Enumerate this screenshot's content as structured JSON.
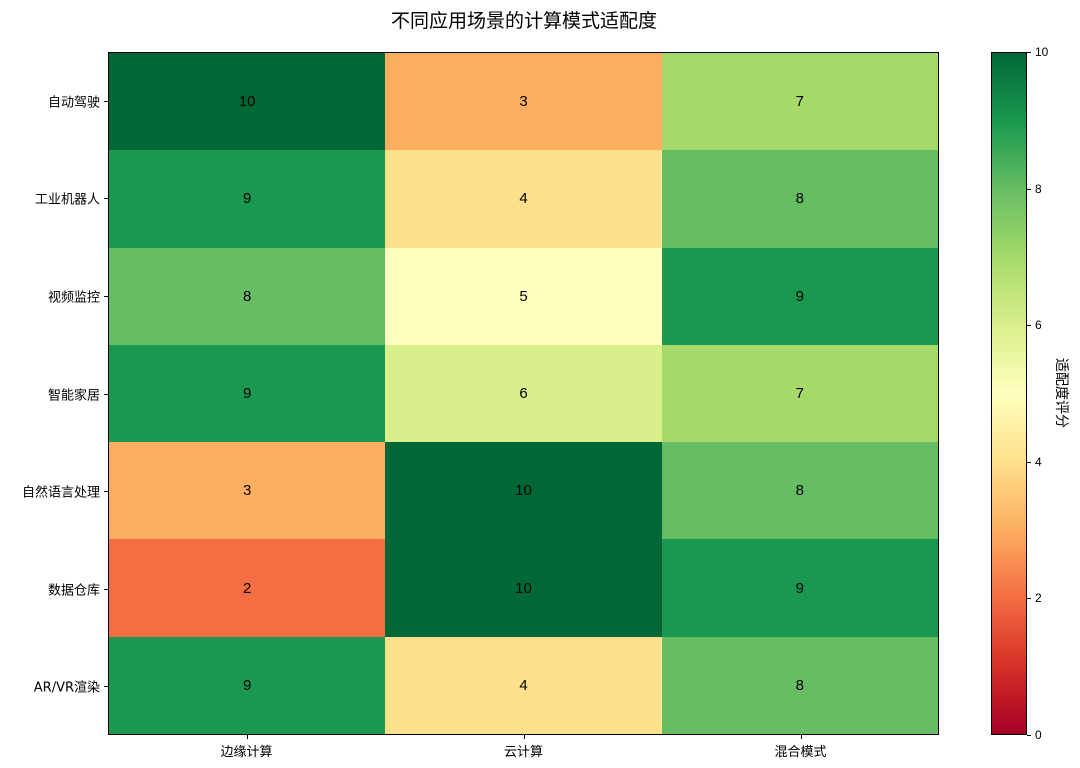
{
  "chart_data": {
    "type": "heatmap",
    "title": "不同应用场景的计算模式适配度",
    "xlabel": "",
    "ylabel": "",
    "x_categories": [
      "边缘计算",
      "云计算",
      "混合模式"
    ],
    "y_categories": [
      "自动驾驶",
      "工业机器人",
      "视频监控",
      "智能家居",
      "自然语言处理",
      "数据仓库",
      "AR/VR渲染"
    ],
    "values": [
      [
        10,
        3,
        7
      ],
      [
        9,
        4,
        8
      ],
      [
        8,
        5,
        9
      ],
      [
        9,
        6,
        7
      ],
      [
        3,
        10,
        8
      ],
      [
        2,
        10,
        9
      ],
      [
        9,
        4,
        8
      ]
    ],
    "colormap": "RdYlGn",
    "vmin": 0,
    "vmax": 10,
    "annotations": true,
    "grid": false,
    "colorbar": {
      "label": "适配度评分",
      "ticks": [
        "0",
        "2",
        "4",
        "6",
        "8",
        "10"
      ],
      "position": "right"
    }
  },
  "colors": {
    "10": "#006837",
    "9": "#1a9850",
    "8": "#66bd63",
    "7": "#a6d96a",
    "6": "#d9ef8b",
    "5": "#ffffbf",
    "4": "#fee08b",
    "3": "#fdae61",
    "2": "#f46d43",
    "1": "#d73027",
    "0": "#a50026"
  }
}
